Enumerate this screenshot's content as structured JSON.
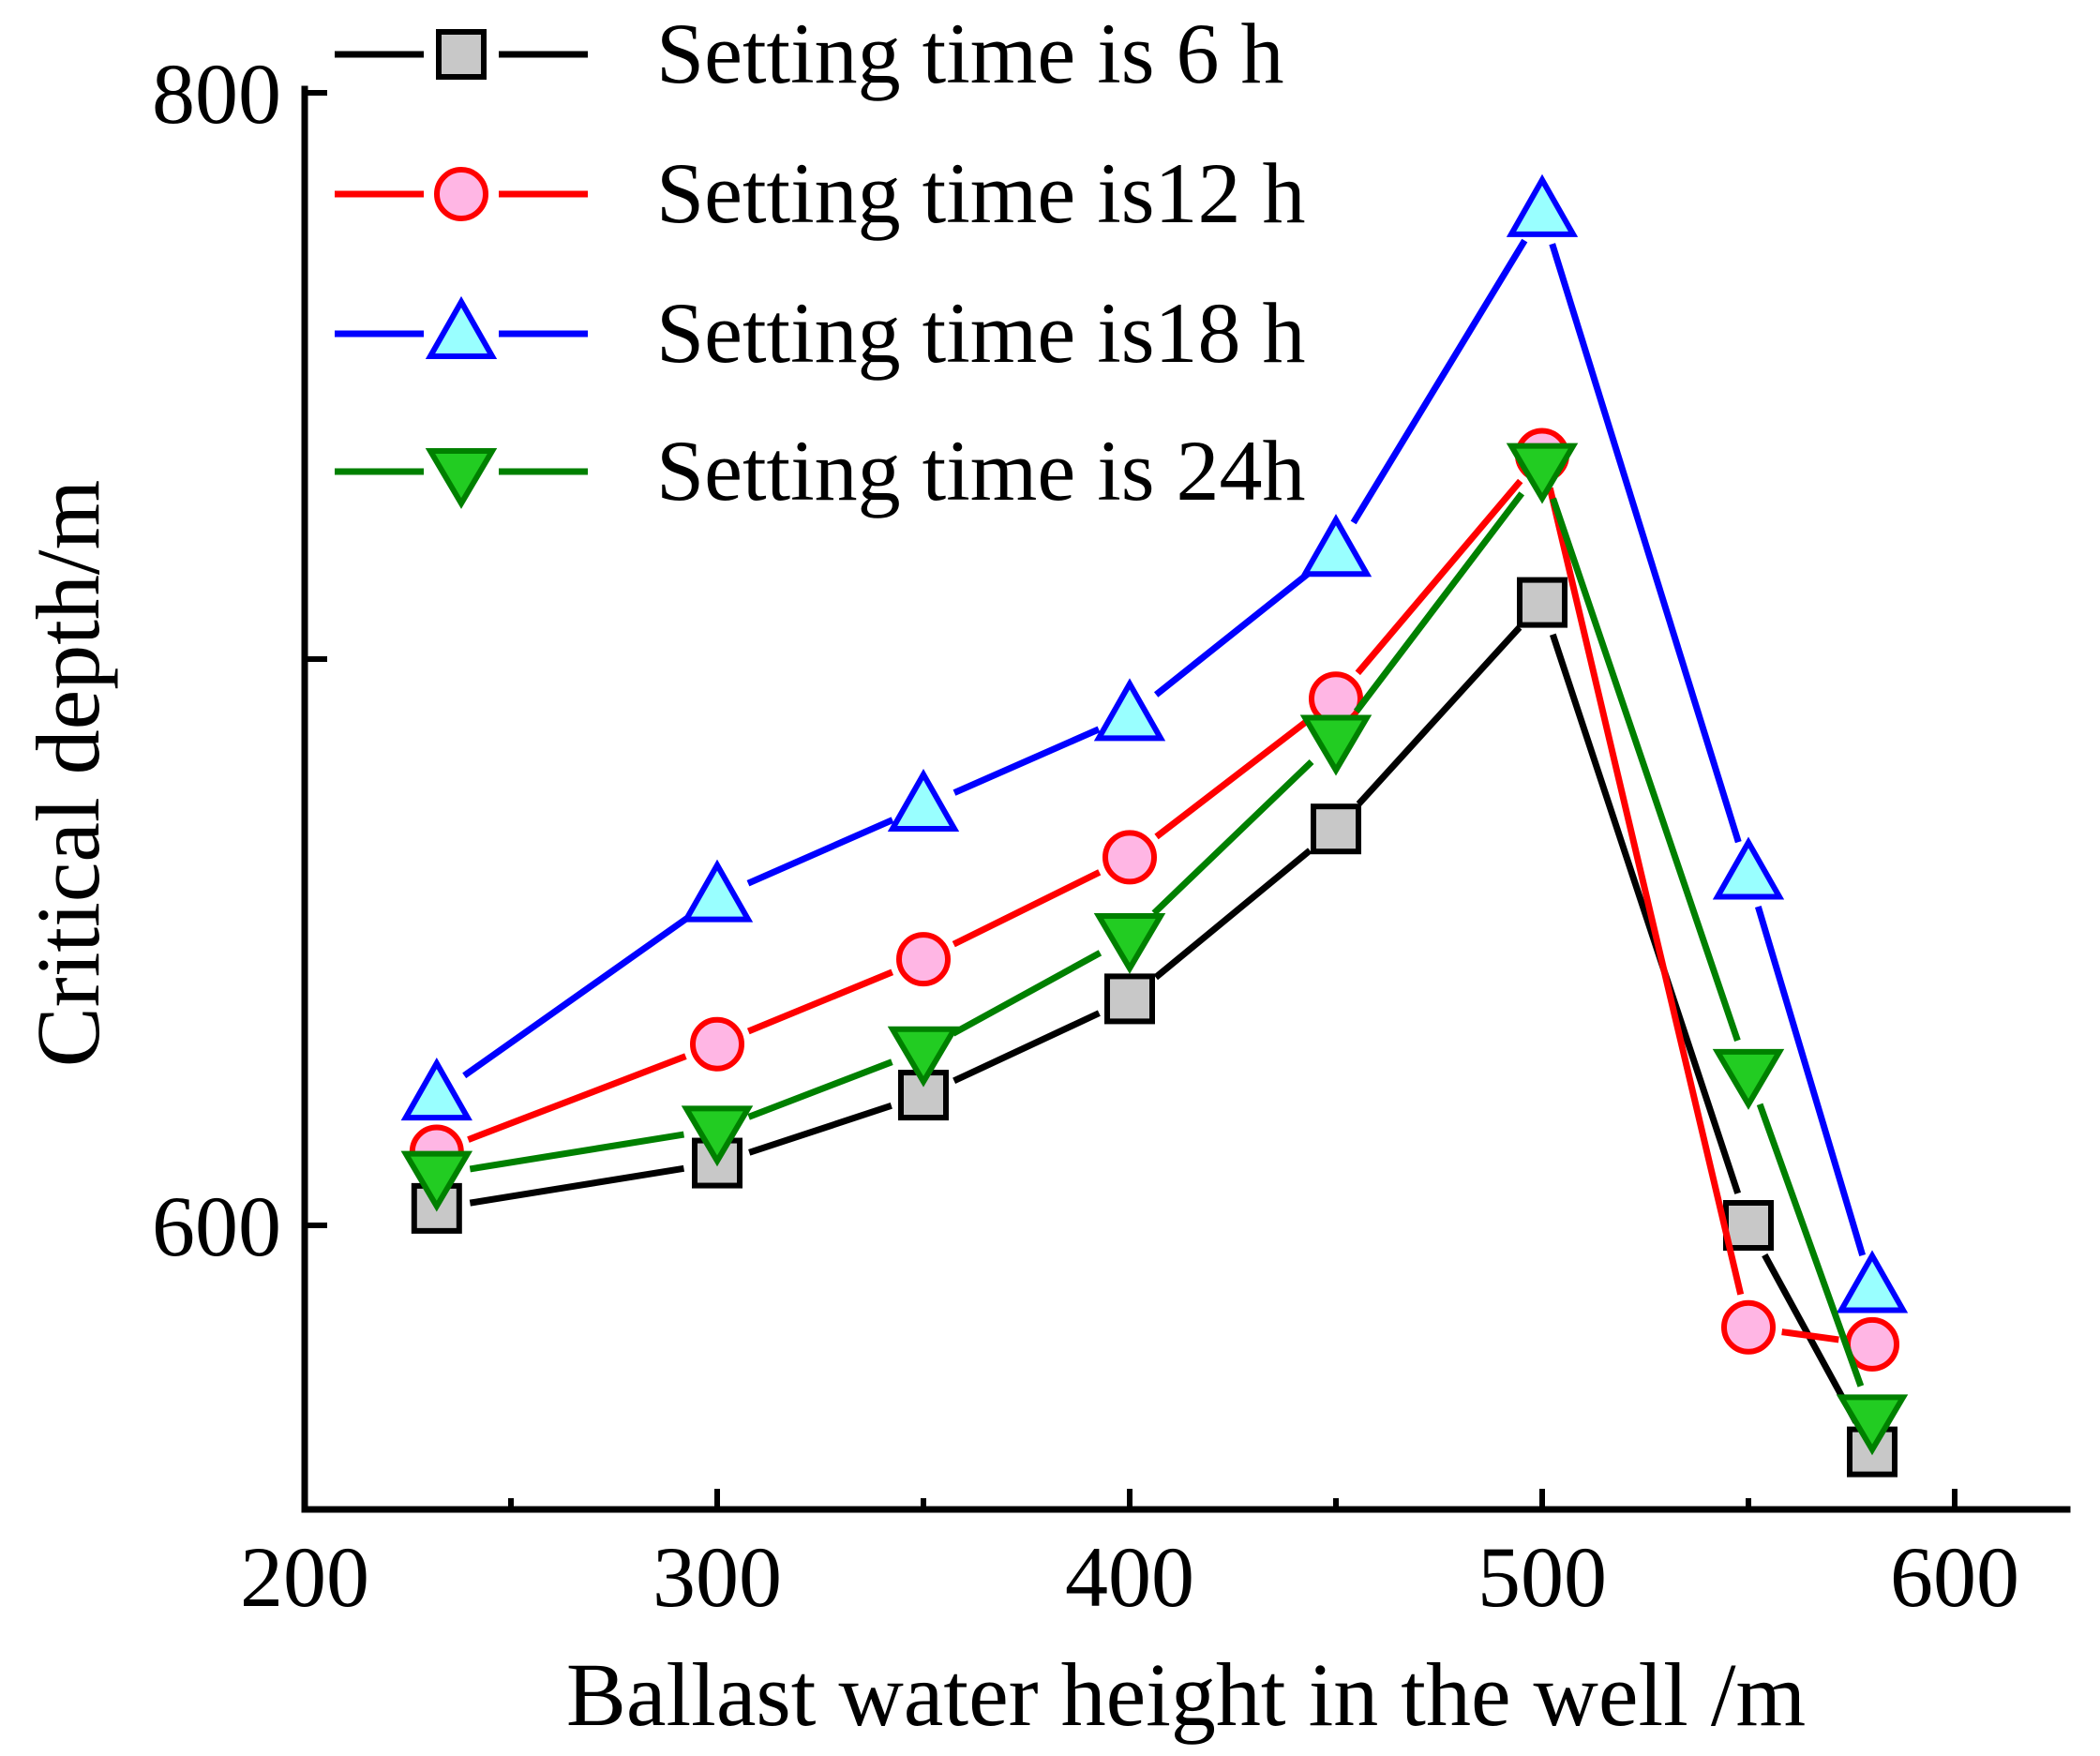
{
  "chart_data": {
    "type": "line",
    "title": "",
    "xlabel": "Ballast water height in the well /m",
    "ylabel": "Critical depth/m",
    "xlim": [
      200,
      625
    ],
    "ylim": [
      550,
      800
    ],
    "xticks": [
      200,
      300,
      400,
      500,
      600
    ],
    "xtick_labels": [
      "200",
      "300",
      "400",
      "500",
      "600"
    ],
    "yticks": [
      600,
      700,
      800
    ],
    "ytick_labels": [
      "600",
      "",
      "800"
    ],
    "x": [
      232,
      300,
      350,
      400,
      450,
      500,
      550,
      580
    ],
    "legend_position": "top-left",
    "series": [
      {
        "name": "Setting time is 6 h",
        "marker": "square",
        "color": "#000000",
        "fill": "#c8c8c8",
        "values": [
          603,
          611,
          623,
          640,
          670,
          710,
          600,
          560
        ]
      },
      {
        "name": "Setting time is12 h",
        "marker": "circle",
        "color": "#ff0000",
        "fill": "#ffb6e4",
        "values": [
          613,
          632,
          647,
          665,
          693,
          736,
          582,
          579
        ]
      },
      {
        "name": "Setting time is18 h",
        "marker": "triangle-up",
        "color": "#0000ff",
        "fill": "#99ffff",
        "values": [
          623,
          658,
          674,
          690,
          719,
          779,
          662,
          589
        ]
      },
      {
        "name": "Setting time is 24h",
        "marker": "triangle-down",
        "color": "#008000",
        "fill": "#22cc22",
        "values": [
          609,
          617,
          631,
          651,
          686,
          734,
          627,
          566
        ]
      }
    ]
  }
}
